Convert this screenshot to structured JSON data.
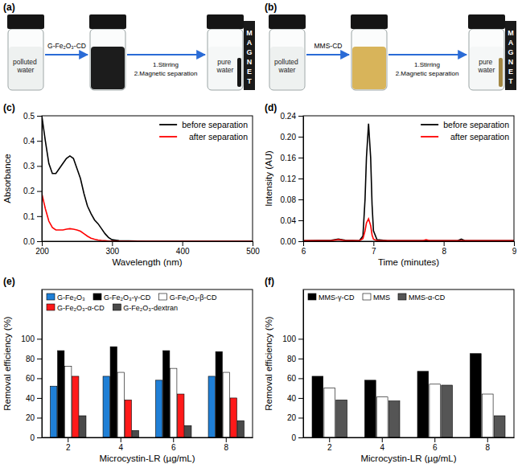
{
  "diagrams": [
    {
      "panel_label": "(a)",
      "start": "polluted water",
      "reagent": "G-Fe₂O₃-CD",
      "mixture_color": "#1c1c1c",
      "steps": [
        "1.Stirring",
        "2.Magnetic separation"
      ],
      "end": "pure water",
      "magnet": "MAGNET"
    },
    {
      "panel_label": "(b)",
      "start": "polluted water",
      "reagent": "MMS-CD",
      "mixture_color": "#d8b45a",
      "steps": [
        "1.Stirring",
        "2.Magnetic separation"
      ],
      "end": "pure water",
      "magnet": "MAGNET"
    }
  ],
  "chart_data": [
    {
      "type": "line",
      "panel_label": "(c)",
      "x_label": "Wavelength (nm)",
      "y_label": "Absorbance",
      "x": [
        200,
        205,
        210,
        215,
        220,
        225,
        230,
        235,
        240,
        245,
        250,
        255,
        260,
        265,
        270,
        275,
        280,
        285,
        290,
        295,
        300,
        310,
        350,
        400,
        450,
        500
      ],
      "xlim": [
        200,
        500
      ],
      "xticks": [
        200,
        300,
        400,
        500
      ],
      "ylim": [
        0,
        0.5
      ],
      "yticks": [
        {
          "value": 0,
          "label": "0.0"
        },
        0.1,
        0.2,
        0.3,
        0.4,
        0.5
      ],
      "legend": "upper right",
      "series": [
        {
          "name": "before separation",
          "color": "#000000",
          "values": [
            0.5,
            0.4,
            0.31,
            0.27,
            0.27,
            0.29,
            0.31,
            0.33,
            0.34,
            0.33,
            0.29,
            0.25,
            0.19,
            0.14,
            0.11,
            0.085,
            0.07,
            0.05,
            0.03,
            0.015,
            0.006,
            0.002,
            0,
            0,
            0,
            0
          ]
        },
        {
          "name": "after separation",
          "color": "#ff0000",
          "values": [
            0.19,
            0.13,
            0.08,
            0.055,
            0.045,
            0.045,
            0.045,
            0.048,
            0.05,
            0.048,
            0.045,
            0.04,
            0.03,
            0.02,
            0.012,
            0.008,
            0.005,
            0.003,
            0.002,
            0.001,
            0,
            0,
            0,
            0,
            0,
            0
          ]
        }
      ]
    },
    {
      "type": "line",
      "panel_label": "(d)",
      "x_label": "Time (minutes)",
      "y_label": "Intensity (AU)",
      "x": [
        6,
        6.4,
        6.5,
        6.6,
        6.8,
        6.85,
        6.88,
        6.9,
        6.93,
        6.96,
        6.98,
        7,
        7.05,
        7.2,
        7.7,
        7.75,
        7.8,
        8.2,
        8.25,
        8.3,
        9
      ],
      "xlim": [
        6,
        9
      ],
      "xticks": [
        6,
        7,
        8,
        9
      ],
      "ylim": [
        0,
        0.24
      ],
      "yticks": [
        {
          "value": 0,
          "label": "0.00"
        },
        0.04,
        0.08,
        0.12,
        0.16,
        {
          "value": 0.2,
          "label": "0.20"
        },
        0.24
      ],
      "legend": "upper right",
      "series": [
        {
          "name": "before separation",
          "color": "#000000",
          "values": [
            0.001,
            0.002,
            0.004,
            0.002,
            0.001,
            0.01,
            0.08,
            0.16,
            0.225,
            0.16,
            0.07,
            0.02,
            0.003,
            0.001,
            0.001,
            0.001,
            0.001,
            0.001,
            0.004,
            0.001,
            0.001
          ]
        },
        {
          "name": "after separation",
          "color": "#ff0000",
          "values": [
            0.001,
            0.001,
            0.003,
            0.001,
            0.001,
            0.005,
            0.02,
            0.035,
            0.043,
            0.03,
            0.012,
            0.004,
            0.001,
            0.001,
            0.001,
            0.003,
            0.001,
            0.001,
            0.001,
            0.001,
            0.001
          ]
        }
      ]
    },
    {
      "type": "bar",
      "panel_label": "(e)",
      "x_label": "Microcystin-LR (µg/mL)",
      "y_label": "Removal efficiency (%)",
      "categories": [
        "2",
        "4",
        "6",
        "8"
      ],
      "ylim": [
        0,
        150
      ],
      "yticks": [
        0,
        20,
        40,
        60,
        80,
        100
      ],
      "legend": "top",
      "series": [
        {
          "name": "G-Fe₂O₃",
          "color": "#1f7fd6",
          "values": [
            52,
            62,
            58,
            62
          ]
        },
        {
          "name": "G-Fe₂O₃-γ-CD",
          "color": "#000000",
          "values": [
            88,
            92,
            88,
            87
          ]
        },
        {
          "name": "G-Fe₂O₃-β-CD",
          "color": "#ffffff",
          "values": [
            72,
            66,
            70,
            66
          ]
        },
        {
          "name": "G-Fe₂O₃-α-CD",
          "color": "#ff1a1a",
          "values": [
            62,
            38,
            44,
            40
          ]
        },
        {
          "name": "G-Fe₂O₃-dextran",
          "color": "#4a4a4a",
          "values": [
            22,
            7,
            12,
            17
          ]
        }
      ]
    },
    {
      "type": "bar",
      "panel_label": "(f)",
      "x_label": "Microcystin-LR (µg/mL)",
      "y_label": "Removal efficiency (%)",
      "categories": [
        "2",
        "4",
        "6",
        "8"
      ],
      "ylim": [
        0,
        150
      ],
      "yticks": [
        0,
        20,
        40,
        60,
        80,
        100
      ],
      "legend": "top",
      "series": [
        {
          "name": "MMS-γ-CD",
          "color": "#000000",
          "values": [
            62,
            58,
            67,
            85
          ]
        },
        {
          "name": "MMS",
          "color": "#ffffff",
          "values": [
            50,
            41,
            54,
            44
          ]
        },
        {
          "name": "MMS-α-CD",
          "color": "#555555",
          "values": [
            38,
            37,
            53,
            22
          ]
        }
      ]
    }
  ]
}
